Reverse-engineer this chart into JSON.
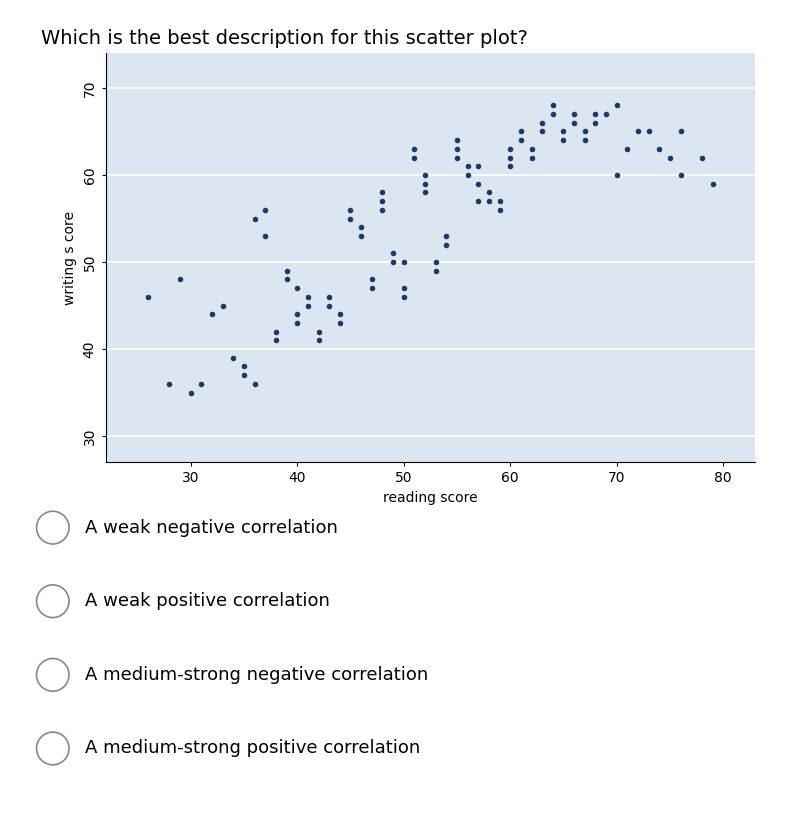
{
  "title": "Which is the best description for this scatter plot?",
  "xlabel": "reading score",
  "ylabel": "writing s core",
  "xlim": [
    22,
    83
  ],
  "ylim": [
    27,
    74
  ],
  "xticks": [
    30,
    40,
    50,
    60,
    70,
    80
  ],
  "yticks": [
    30,
    40,
    50,
    60,
    70
  ],
  "dot_color": "#1f3864",
  "bg_color": "#dce6f1",
  "options": [
    "A weak negative correlation",
    "A weak positive correlation",
    "A medium-strong negative correlation",
    "A medium-strong positive correlation"
  ],
  "x_data": [
    26,
    28,
    29,
    30,
    31,
    32,
    33,
    34,
    35,
    35,
    36,
    36,
    37,
    37,
    38,
    38,
    39,
    39,
    40,
    40,
    40,
    41,
    41,
    42,
    42,
    43,
    43,
    44,
    44,
    45,
    45,
    46,
    46,
    47,
    47,
    48,
    48,
    48,
    49,
    49,
    50,
    50,
    50,
    51,
    51,
    52,
    52,
    52,
    53,
    53,
    54,
    54,
    55,
    55,
    55,
    56,
    56,
    57,
    57,
    57,
    58,
    58,
    59,
    59,
    60,
    60,
    60,
    61,
    61,
    62,
    62,
    63,
    63,
    64,
    64,
    65,
    65,
    66,
    66,
    67,
    67,
    68,
    68,
    69,
    70,
    70,
    71,
    72,
    73,
    74,
    75,
    76,
    76,
    78,
    79
  ],
  "y_data": [
    46,
    36,
    48,
    35,
    36,
    44,
    45,
    39,
    38,
    37,
    36,
    55,
    56,
    53,
    41,
    42,
    49,
    48,
    44,
    43,
    47,
    46,
    45,
    42,
    41,
    45,
    46,
    43,
    44,
    55,
    56,
    53,
    54,
    48,
    47,
    58,
    57,
    56,
    51,
    50,
    47,
    46,
    50,
    62,
    63,
    59,
    58,
    60,
    49,
    50,
    52,
    53,
    63,
    62,
    64,
    61,
    60,
    59,
    61,
    57,
    57,
    58,
    56,
    57,
    62,
    61,
    63,
    65,
    64,
    63,
    62,
    66,
    65,
    68,
    67,
    65,
    64,
    66,
    67,
    65,
    64,
    66,
    67,
    67,
    68,
    60,
    63,
    65,
    65,
    63,
    62,
    65,
    60,
    62,
    59
  ]
}
